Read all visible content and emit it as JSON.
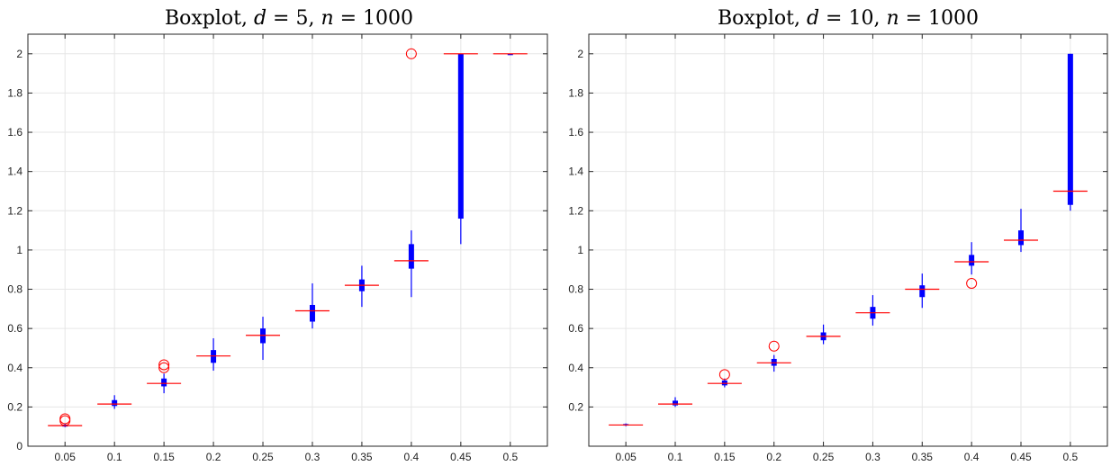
{
  "chart_data": [
    {
      "type": "boxplot",
      "title_text": "Boxplot, ",
      "title_math": [
        {
          "sym": "d",
          "eq": " = ",
          "val": "5"
        },
        {
          "sym": "n",
          "eq": " = ",
          "val": "1000"
        }
      ],
      "categories": [
        "0.05",
        "0.1",
        "0.15",
        "0.2",
        "0.25",
        "0.3",
        "0.35",
        "0.4",
        "0.45",
        "0.5"
      ],
      "ylim": [
        0,
        2.1
      ],
      "yticks": [
        "0",
        "0.2",
        "0.4",
        "0.6",
        "0.8",
        "1",
        "1.2",
        "1.4",
        "1.6",
        "1.8",
        "2"
      ],
      "grid": true,
      "boxes": [
        {
          "x": "0.05",
          "q1": 0.1,
          "median": 0.105,
          "q3": 0.11,
          "wlo": 0.097,
          "whi": 0.113,
          "outliers": [
            0.13,
            0.14
          ]
        },
        {
          "x": "0.1",
          "q1": 0.205,
          "median": 0.215,
          "q3": 0.235,
          "wlo": 0.19,
          "whi": 0.26,
          "outliers": []
        },
        {
          "x": "0.15",
          "q1": 0.305,
          "median": 0.32,
          "q3": 0.345,
          "wlo": 0.27,
          "whi": 0.37,
          "outliers": [
            0.4,
            0.415
          ]
        },
        {
          "x": "0.2",
          "q1": 0.425,
          "median": 0.46,
          "q3": 0.49,
          "wlo": 0.385,
          "whi": 0.55,
          "outliers": []
        },
        {
          "x": "0.25",
          "q1": 0.525,
          "median": 0.565,
          "q3": 0.6,
          "wlo": 0.44,
          "whi": 0.66,
          "outliers": []
        },
        {
          "x": "0.3",
          "q1": 0.635,
          "median": 0.69,
          "q3": 0.72,
          "wlo": 0.6,
          "whi": 0.83,
          "outliers": []
        },
        {
          "x": "0.35",
          "q1": 0.79,
          "median": 0.82,
          "q3": 0.85,
          "wlo": 0.71,
          "whi": 0.92,
          "outliers": []
        },
        {
          "x": "0.4",
          "q1": 0.905,
          "median": 0.945,
          "q3": 1.03,
          "wlo": 0.76,
          "whi": 1.1,
          "outliers": [
            2.0
          ]
        },
        {
          "x": "0.45",
          "q1": 1.16,
          "median": 2.0,
          "q3": 2.0,
          "wlo": 1.03,
          "whi": 2.0,
          "outliers": []
        },
        {
          "x": "0.5",
          "q1": 2.0,
          "median": 2.0,
          "q3": 2.0,
          "wlo": 2.0,
          "whi": 2.0,
          "outliers": []
        }
      ]
    },
    {
      "type": "boxplot",
      "title_text": "Boxplot, ",
      "title_math": [
        {
          "sym": "d",
          "eq": " = ",
          "val": "10"
        },
        {
          "sym": "n",
          "eq": " = ",
          "val": "1000"
        }
      ],
      "categories": [
        "0.05",
        "0.1",
        "0.15",
        "0.2",
        "0.25",
        "0.3",
        "0.35",
        "0.4",
        "0.45",
        "0.5"
      ],
      "ylim": [
        0,
        2.1
      ],
      "yticks": [
        "0.2",
        "0.4",
        "0.6",
        "0.8",
        "1",
        "1.2",
        "1.4",
        "1.6",
        "1.8",
        "2"
      ],
      "grid": true,
      "boxes": [
        {
          "x": "0.05",
          "q1": 0.105,
          "median": 0.108,
          "q3": 0.113,
          "wlo": 0.102,
          "whi": 0.116,
          "outliers": []
        },
        {
          "x": "0.1",
          "q1": 0.208,
          "median": 0.215,
          "q3": 0.232,
          "wlo": 0.2,
          "whi": 0.25,
          "outliers": []
        },
        {
          "x": "0.15",
          "q1": 0.31,
          "median": 0.32,
          "q3": 0.335,
          "wlo": 0.3,
          "whi": 0.345,
          "outliers": [
            0.365
          ]
        },
        {
          "x": "0.2",
          "q1": 0.41,
          "median": 0.425,
          "q3": 0.445,
          "wlo": 0.38,
          "whi": 0.465,
          "outliers": [
            0.51
          ]
        },
        {
          "x": "0.25",
          "q1": 0.54,
          "median": 0.56,
          "q3": 0.58,
          "wlo": 0.52,
          "whi": 0.62,
          "outliers": []
        },
        {
          "x": "0.3",
          "q1": 0.65,
          "median": 0.68,
          "q3": 0.71,
          "wlo": 0.615,
          "whi": 0.77,
          "outliers": []
        },
        {
          "x": "0.35",
          "q1": 0.76,
          "median": 0.8,
          "q3": 0.82,
          "wlo": 0.705,
          "whi": 0.88,
          "outliers": []
        },
        {
          "x": "0.4",
          "q1": 0.92,
          "median": 0.94,
          "q3": 0.975,
          "wlo": 0.875,
          "whi": 1.04,
          "outliers": [
            0.83
          ]
        },
        {
          "x": "0.45",
          "q1": 1.025,
          "median": 1.05,
          "q3": 1.1,
          "wlo": 0.99,
          "whi": 1.21,
          "outliers": []
        },
        {
          "x": "0.5",
          "q1": 1.23,
          "median": 1.3,
          "q3": 2.0,
          "wlo": 1.2,
          "whi": 2.0,
          "outliers": []
        }
      ]
    }
  ],
  "colors": {
    "box": "#0000ff",
    "median": "#ff0000",
    "outlier": "#ff0000",
    "grid": "#e6e6e6",
    "axis": "#262626"
  }
}
